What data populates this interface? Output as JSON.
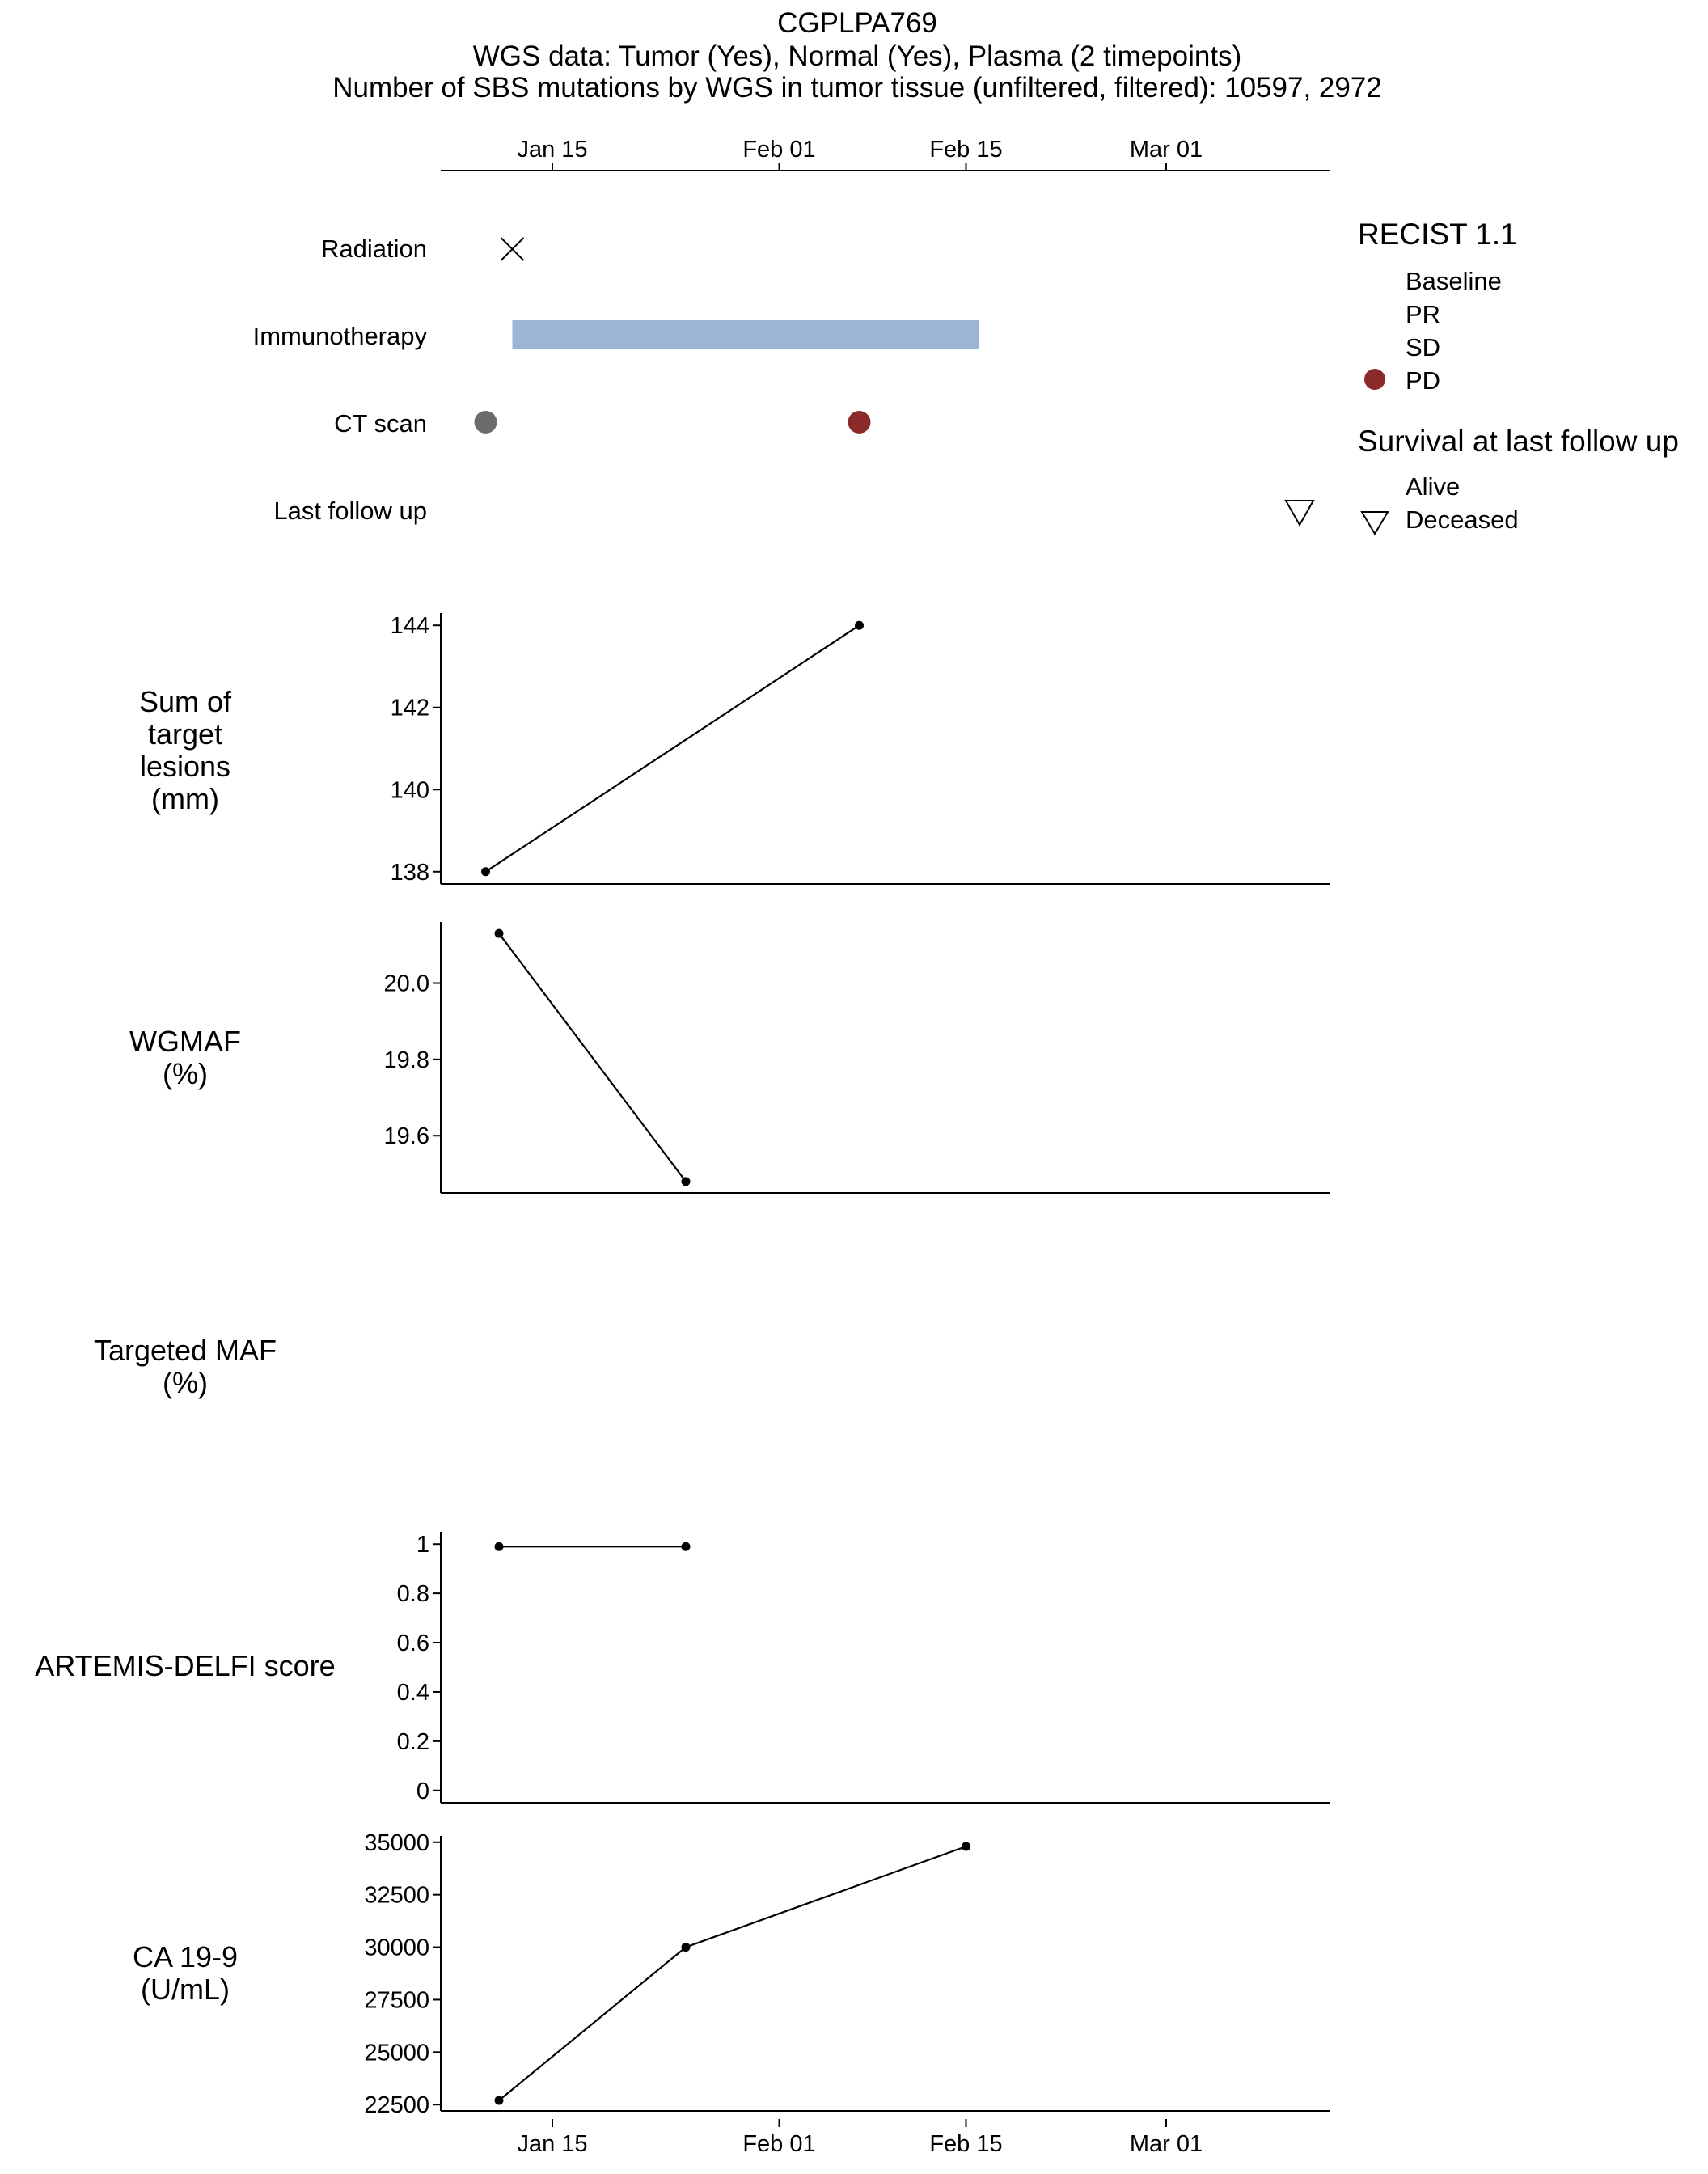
{
  "header": {
    "title": "CGPLPA769",
    "subtitle": "WGS data: Tumor (Yes), Normal (Yes), Plasma (2 timepoints)",
    "subtitle2": "Number of SBS mutations by WGS in tumor tissue (unfiltered, filtered): 10597, 2972"
  },
  "time_axis": {
    "ticks": [
      {
        "label": "Jan 15",
        "date": "2000-01-15"
      },
      {
        "label": "Feb 01",
        "date": "2000-02-01"
      },
      {
        "label": "Feb 15",
        "date": "2000-02-15"
      },
      {
        "label": "Mar 01",
        "date": "2000-03-01"
      }
    ]
  },
  "colors": {
    "immunotherapy": "#9db5d4",
    "ct_baseline": "#6b6b6b",
    "pd": "#8b2a2a",
    "line": "#000000"
  },
  "legend": {
    "recist_title": "RECIST 1.1",
    "recist_items": [
      {
        "label": "Baseline",
        "marker": "none"
      },
      {
        "label": "PR",
        "marker": "none"
      },
      {
        "label": "SD",
        "marker": "none"
      },
      {
        "label": "PD",
        "marker": "circle"
      }
    ],
    "survival_title": "Survival at last follow up",
    "survival_items": [
      {
        "label": "Alive",
        "marker": "none"
      },
      {
        "label": "Deceased",
        "marker": "down-triangle"
      }
    ]
  },
  "chart_data": [
    {
      "type": "timeline",
      "rows": [
        {
          "label": "Radiation",
          "events": [
            {
              "date": "2000-01-12",
              "marker": "x-icon"
            }
          ]
        },
        {
          "label": "Immunotherapy",
          "intervals": [
            {
              "start": "2000-01-12",
              "end": "2000-02-16"
            }
          ]
        },
        {
          "label": "CT scan",
          "events": [
            {
              "date": "2000-01-10",
              "category": "Baseline"
            },
            {
              "date": "2000-02-07",
              "category": "PD"
            }
          ]
        },
        {
          "label": "Last follow up",
          "events": [
            {
              "date": "2000-03-11",
              "status": "Deceased"
            }
          ]
        }
      ]
    },
    {
      "type": "line",
      "ylabel": [
        "Sum of",
        "target",
        "lesions",
        "(mm)"
      ],
      "x": [
        "2000-01-10",
        "2000-02-07"
      ],
      "values": [
        138,
        144
      ],
      "yticks": [
        138,
        140,
        142,
        144
      ],
      "ylim": [
        137.7,
        144.3
      ]
    },
    {
      "type": "line",
      "ylabel": [
        "WGMAF",
        "(%)"
      ],
      "x": [
        "2000-01-11",
        "2000-01-25"
      ],
      "values": [
        20.13,
        19.48
      ],
      "yticks": [
        19.6,
        19.8,
        20.0
      ],
      "ytick_labels": [
        "19.6",
        "19.8",
        "20.0"
      ],
      "ylim": [
        19.45,
        20.16
      ]
    },
    {
      "type": "line",
      "ylabel": [
        "Targeted MAF",
        "(%)"
      ],
      "x": [],
      "values": []
    },
    {
      "type": "line",
      "ylabel": [
        "ARTEMIS-DELFI score"
      ],
      "x": [
        "2000-01-11",
        "2000-01-25"
      ],
      "values": [
        0.99,
        0.99
      ],
      "yticks": [
        0,
        0.2,
        0.4,
        0.6,
        0.8,
        1
      ],
      "ytick_labels": [
        "0",
        "0.2",
        "0.4",
        "0.6",
        "0.8",
        "1"
      ],
      "ylim": [
        -0.05,
        1.05
      ]
    },
    {
      "type": "line",
      "ylabel": [
        "CA 19-9",
        "(U/mL)"
      ],
      "x": [
        "2000-01-11",
        "2000-01-25",
        "2000-02-15"
      ],
      "values": [
        22700,
        30000,
        34800
      ],
      "yticks": [
        22500,
        25000,
        27500,
        30000,
        32500,
        35000
      ],
      "ytick_labels": [
        "22500",
        "25000",
        "27500",
        "30000",
        "32500",
        "35000"
      ],
      "ylim": [
        22200,
        35300
      ]
    }
  ]
}
